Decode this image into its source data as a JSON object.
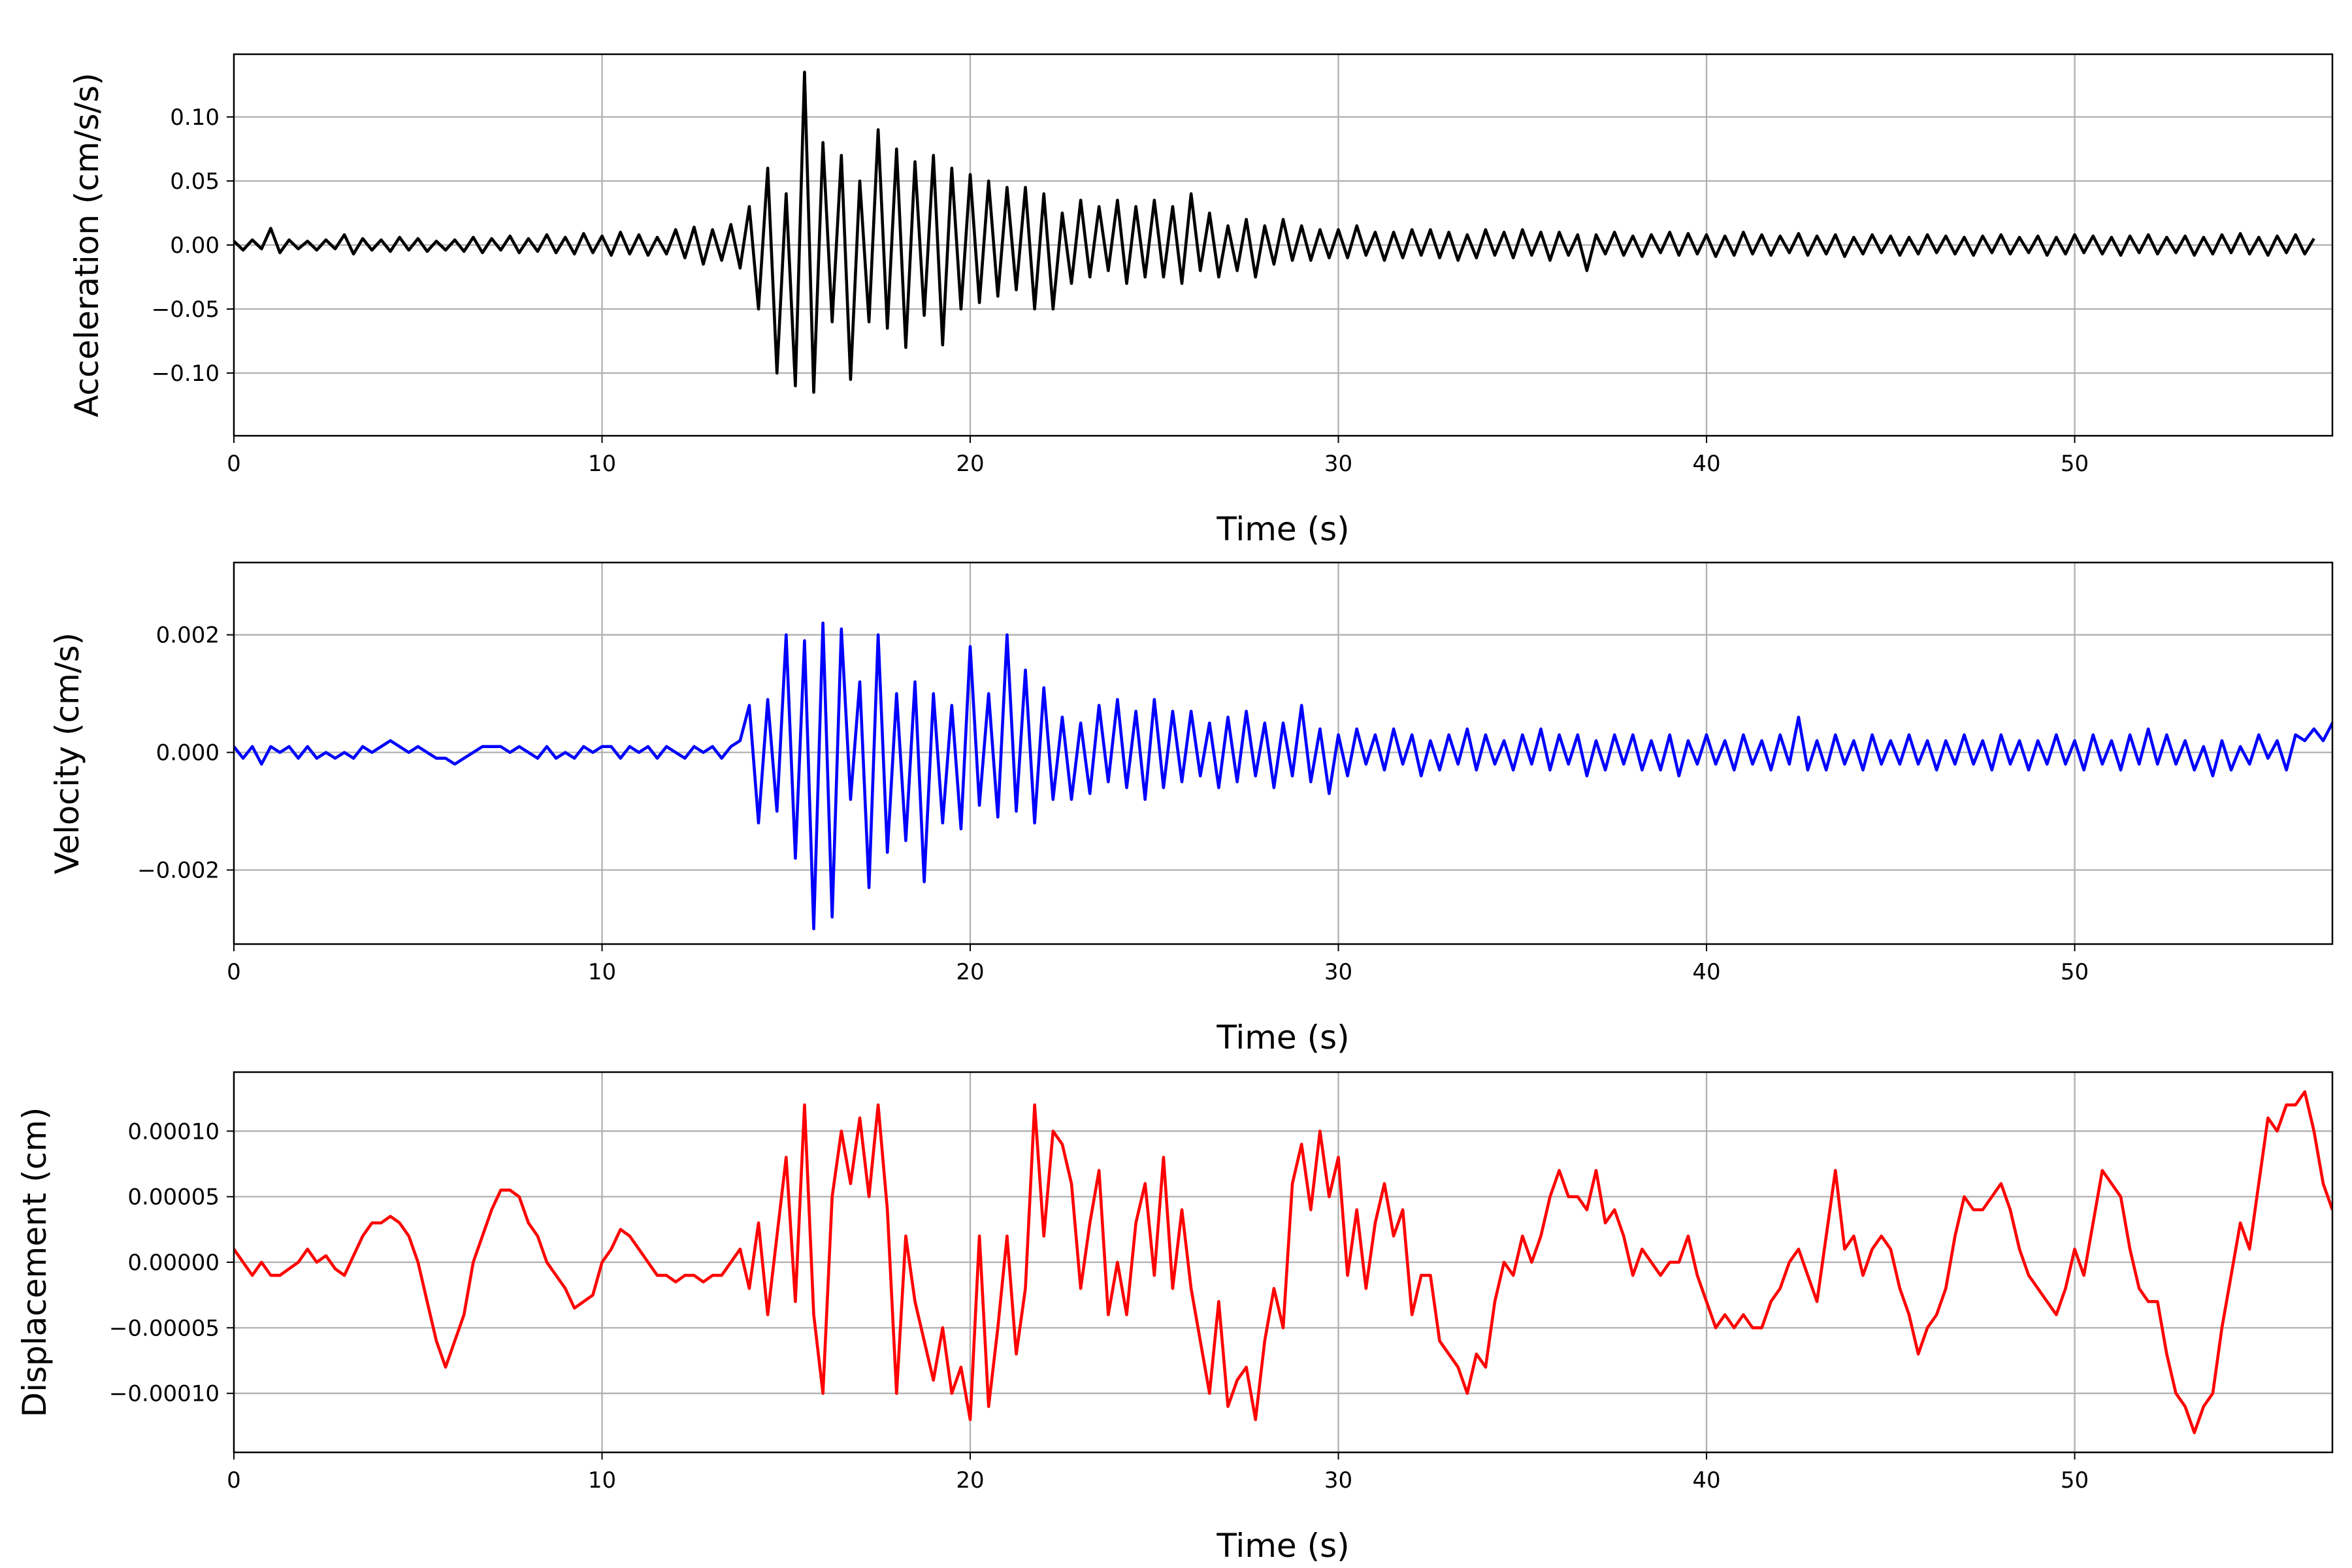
{
  "chart_data": [
    {
      "type": "line",
      "title": "",
      "xlabel": "Time (s)",
      "ylabel": "Acceleration (cm/s/s)",
      "color": "#000000",
      "xlim": [
        0,
        57
      ],
      "ylim": [
        -0.149,
        0.149
      ],
      "grid": true,
      "x_ticks": [
        0,
        10,
        20,
        30,
        40,
        50
      ],
      "x_tick_labels": [
        "0",
        "10",
        "20",
        "30",
        "40",
        "50"
      ],
      "y_ticks": [
        -0.1,
        -0.05,
        0.0,
        0.05,
        0.1
      ],
      "y_tick_labels": [
        "−0.10",
        "−0.05",
        "0.00",
        "0.05",
        "0.10"
      ],
      "x_start": 0,
      "dt": 0.25,
      "values": [
        0.003,
        -0.004,
        0.004,
        -0.003,
        0.013,
        -0.006,
        0.004,
        -0.003,
        0.003,
        -0.004,
        0.004,
        -0.003,
        0.008,
        -0.007,
        0.005,
        -0.004,
        0.004,
        -0.005,
        0.006,
        -0.004,
        0.005,
        -0.005,
        0.003,
        -0.004,
        0.004,
        -0.005,
        0.006,
        -0.006,
        0.005,
        -0.004,
        0.007,
        -0.006,
        0.005,
        -0.005,
        0.008,
        -0.006,
        0.006,
        -0.007,
        0.009,
        -0.006,
        0.007,
        -0.008,
        0.01,
        -0.007,
        0.008,
        -0.008,
        0.006,
        -0.007,
        0.012,
        -0.01,
        0.014,
        -0.015,
        0.012,
        -0.012,
        0.016,
        -0.018,
        0.03,
        -0.05,
        0.06,
        -0.1,
        0.04,
        -0.11,
        0.135,
        -0.115,
        0.08,
        -0.06,
        0.07,
        -0.105,
        0.05,
        -0.06,
        0.09,
        -0.065,
        0.075,
        -0.08,
        0.065,
        -0.055,
        0.07,
        -0.078,
        0.06,
        -0.05,
        0.055,
        -0.045,
        0.05,
        -0.04,
        0.045,
        -0.035,
        0.045,
        -0.05,
        0.04,
        -0.05,
        0.025,
        -0.03,
        0.035,
        -0.025,
        0.03,
        -0.02,
        0.035,
        -0.03,
        0.03,
        -0.025,
        0.035,
        -0.025,
        0.03,
        -0.03,
        0.04,
        -0.02,
        0.025,
        -0.025,
        0.015,
        -0.02,
        0.02,
        -0.025,
        0.015,
        -0.015,
        0.02,
        -0.012,
        0.015,
        -0.012,
        0.012,
        -0.01,
        0.012,
        -0.01,
        0.015,
        -0.008,
        0.01,
        -0.012,
        0.01,
        -0.01,
        0.012,
        -0.008,
        0.012,
        -0.01,
        0.01,
        -0.012,
        0.008,
        -0.01,
        0.012,
        -0.008,
        0.01,
        -0.01,
        0.012,
        -0.008,
        0.01,
        -0.012,
        0.01,
        -0.008,
        0.008,
        -0.02,
        0.008,
        -0.007,
        0.01,
        -0.008,
        0.007,
        -0.009,
        0.008,
        -0.006,
        0.01,
        -0.008,
        0.009,
        -0.007,
        0.008,
        -0.009,
        0.007,
        -0.008,
        0.01,
        -0.007,
        0.008,
        -0.008,
        0.007,
        -0.006,
        0.009,
        -0.008,
        0.007,
        -0.007,
        0.008,
        -0.009,
        0.006,
        -0.007,
        0.008,
        -0.006,
        0.007,
        -0.008,
        0.006,
        -0.007,
        0.008,
        -0.006,
        0.007,
        -0.007,
        0.006,
        -0.008,
        0.007,
        -0.006,
        0.008,
        -0.007,
        0.006,
        -0.006,
        0.007,
        -0.008,
        0.006,
        -0.007,
        0.008,
        -0.006,
        0.007,
        -0.007,
        0.006,
        -0.008,
        0.007,
        -0.006,
        0.008,
        -0.007,
        0.006,
        -0.006,
        0.007,
        -0.008,
        0.006,
        -0.007,
        0.008,
        -0.006,
        0.009,
        -0.007,
        0.006,
        -0.008,
        0.007,
        -0.006,
        0.008,
        -0.007,
        0.005
      ]
    },
    {
      "type": "line",
      "title": "",
      "xlabel": "Time (s)",
      "ylabel": "Velocity (cm/s)",
      "color": "#0000ff",
      "xlim": [
        0,
        57
      ],
      "ylim": [
        -0.00326,
        0.00323
      ],
      "grid": true,
      "x_ticks": [
        0,
        10,
        20,
        30,
        40,
        50
      ],
      "x_tick_labels": [
        "0",
        "10",
        "20",
        "30",
        "40",
        "50"
      ],
      "y_ticks": [
        -0.002,
        0.0,
        0.002
      ],
      "y_tick_labels": [
        "−0.002",
        "0.000",
        "0.002"
      ],
      "x_start": 0,
      "dt": 0.25,
      "values": [
        0.0001,
        -0.0001,
        0.0001,
        -0.0002,
        0.0001,
        0.0,
        0.0001,
        -0.0001,
        0.0001,
        -0.0001,
        0.0,
        -0.0001,
        0.0,
        -0.0001,
        0.0001,
        0.0,
        0.0001,
        0.0002,
        0.0001,
        0.0,
        0.0001,
        0.0,
        -0.0001,
        -0.0001,
        -0.0002,
        -0.0001,
        0.0,
        0.0001,
        0.0001,
        0.0001,
        0.0,
        0.0001,
        0.0,
        -0.0001,
        0.0001,
        -0.0001,
        0.0,
        -0.0001,
        0.0001,
        0.0,
        0.0001,
        0.0001,
        -0.0001,
        0.0001,
        0.0,
        0.0001,
        -0.0001,
        0.0001,
        0.0,
        -0.0001,
        0.0001,
        0.0,
        0.0001,
        -0.0001,
        0.0001,
        0.0002,
        0.0008,
        -0.0012,
        0.0009,
        -0.001,
        0.002,
        -0.0018,
        0.0019,
        -0.003,
        0.0022,
        -0.0028,
        0.0021,
        -0.0008,
        0.0012,
        -0.0023,
        0.002,
        -0.0017,
        0.001,
        -0.0015,
        0.0012,
        -0.0022,
        0.001,
        -0.0012,
        0.0008,
        -0.0013,
        0.0018,
        -0.0009,
        0.001,
        -0.0011,
        0.002,
        -0.001,
        0.0014,
        -0.0012,
        0.0011,
        -0.0008,
        0.0006,
        -0.0008,
        0.0005,
        -0.0007,
        0.0008,
        -0.0005,
        0.0009,
        -0.0006,
        0.0007,
        -0.0008,
        0.0009,
        -0.0006,
        0.0007,
        -0.0005,
        0.0007,
        -0.0004,
        0.0005,
        -0.0006,
        0.0006,
        -0.0005,
        0.0007,
        -0.0004,
        0.0005,
        -0.0006,
        0.0005,
        -0.0004,
        0.0008,
        -0.0005,
        0.0004,
        -0.0007,
        0.0003,
        -0.0004,
        0.0004,
        -0.0002,
        0.0003,
        -0.0003,
        0.0004,
        -0.0002,
        0.0003,
        -0.0004,
        0.0002,
        -0.0003,
        0.0003,
        -0.0002,
        0.0004,
        -0.0003,
        0.0003,
        -0.0002,
        0.0002,
        -0.0003,
        0.0003,
        -0.0002,
        0.0004,
        -0.0003,
        0.0003,
        -0.0002,
        0.0003,
        -0.0004,
        0.0002,
        -0.0003,
        0.0003,
        -0.0002,
        0.0003,
        -0.0003,
        0.0002,
        -0.0003,
        0.0003,
        -0.0004,
        0.0002,
        -0.0002,
        0.0003,
        -0.0002,
        0.0002,
        -0.0003,
        0.0003,
        -0.0002,
        0.0002,
        -0.0003,
        0.0003,
        -0.0002,
        0.0006,
        -0.0003,
        0.0002,
        -0.0003,
        0.0003,
        -0.0002,
        0.0002,
        -0.0003,
        0.0003,
        -0.0002,
        0.0002,
        -0.0002,
        0.0003,
        -0.0002,
        0.0002,
        -0.0003,
        0.0002,
        -0.0002,
        0.0003,
        -0.0002,
        0.0002,
        -0.0003,
        0.0003,
        -0.0002,
        0.0002,
        -0.0003,
        0.0002,
        -0.0002,
        0.0003,
        -0.0002,
        0.0002,
        -0.0003,
        0.0003,
        -0.0002,
        0.0002,
        -0.0003,
        0.0003,
        -0.0002,
        0.0004,
        -0.0002,
        0.0003,
        -0.0002,
        0.0002,
        -0.0003,
        0.0001,
        -0.0004,
        0.0002,
        -0.0003,
        0.0001,
        -0.0002,
        0.0003,
        -0.0001,
        0.0002,
        -0.0003,
        0.0003,
        0.0002,
        0.0004,
        0.0002,
        0.0005,
        0.0001,
        -0.0001
      ]
    },
    {
      "type": "line",
      "title": "",
      "xlabel": "Time (s)",
      "ylabel": "Displacement (cm)",
      "color": "#ff0000",
      "xlim": [
        0,
        57
      ],
      "ylim": [
        -0.000145,
        0.000145
      ],
      "grid": true,
      "x_ticks": [
        0,
        10,
        20,
        30,
        40,
        50
      ],
      "x_tick_labels": [
        "0",
        "10",
        "20",
        "30",
        "40",
        "50"
      ],
      "y_ticks": [
        -0.0001,
        -5e-05,
        0.0,
        5e-05,
        0.0001
      ],
      "y_tick_labels": [
        "−0.00010",
        "−0.00005",
        "0.00000",
        "0.00005",
        "0.00010"
      ],
      "x_start": 0,
      "dt": 0.25,
      "values": [
        1e-05,
        0,
        -1e-05,
        0,
        -1e-05,
        -1e-05,
        -5e-06,
        0,
        1e-05,
        0,
        5e-06,
        -5e-06,
        -1e-05,
        5e-06,
        2e-05,
        3e-05,
        3e-05,
        3.5e-05,
        3e-05,
        2e-05,
        0,
        -3e-05,
        -6e-05,
        -8e-05,
        -6e-05,
        -4e-05,
        0,
        2e-05,
        4e-05,
        5.5e-05,
        5.5e-05,
        5e-05,
        3e-05,
        2e-05,
        0,
        -1e-05,
        -2e-05,
        -3.5e-05,
        -3e-05,
        -2.5e-05,
        0,
        1e-05,
        2.5e-05,
        2e-05,
        1e-05,
        0,
        -1e-05,
        -1e-05,
        -1.5e-05,
        -1e-05,
        -1e-05,
        -1.5e-05,
        -1e-05,
        -1e-05,
        0,
        1e-05,
        -2e-05,
        3e-05,
        -4e-05,
        2e-05,
        8e-05,
        -3e-05,
        0.00012,
        -4e-05,
        -0.0001,
        5e-05,
        0.0001,
        6e-05,
        0.00011,
        5e-05,
        0.00012,
        4e-05,
        -0.0001,
        2e-05,
        -3e-05,
        -6e-05,
        -9e-05,
        -5e-05,
        -0.0001,
        -8e-05,
        -0.00012,
        2e-05,
        -0.00011,
        -5e-05,
        2e-05,
        -7e-05,
        -2e-05,
        0.00012,
        2e-05,
        0.0001,
        9e-05,
        6e-05,
        -2e-05,
        3e-05,
        7e-05,
        -4e-05,
        0,
        -4e-05,
        3e-05,
        6e-05,
        -1e-05,
        8e-05,
        -2e-05,
        4e-05,
        -2e-05,
        -6e-05,
        -0.0001,
        -3e-05,
        -0.00011,
        -9e-05,
        -8e-05,
        -0.00012,
        -6e-05,
        -2e-05,
        -5e-05,
        6e-05,
        9e-05,
        4e-05,
        0.0001,
        5e-05,
        8e-05,
        -1e-05,
        4e-05,
        -2e-05,
        3e-05,
        6e-05,
        2e-05,
        4e-05,
        -4e-05,
        -1e-05,
        -1e-05,
        -6e-05,
        -7e-05,
        -8e-05,
        -0.0001,
        -7e-05,
        -8e-05,
        -3e-05,
        0,
        -1e-05,
        2e-05,
        0,
        2e-05,
        5e-05,
        7e-05,
        5e-05,
        5e-05,
        4e-05,
        7e-05,
        3e-05,
        4e-05,
        2e-05,
        -1e-05,
        1e-05,
        0,
        -1e-05,
        0,
        0,
        2e-05,
        -1e-05,
        -3e-05,
        -5e-05,
        -4e-05,
        -5e-05,
        -4e-05,
        -5e-05,
        -5e-05,
        -3e-05,
        -2e-05,
        0,
        1e-05,
        -1e-05,
        -3e-05,
        2e-05,
        7e-05,
        1e-05,
        2e-05,
        -1e-05,
        1e-05,
        2e-05,
        1e-05,
        -2e-05,
        -4e-05,
        -7e-05,
        -5e-05,
        -4e-05,
        -2e-05,
        2e-05,
        5e-05,
        4e-05,
        4e-05,
        5e-05,
        6e-05,
        4e-05,
        1e-05,
        -1e-05,
        -2e-05,
        -3e-05,
        -4e-05,
        -2e-05,
        1e-05,
        -1e-05,
        3e-05,
        7e-05,
        6e-05,
        5e-05,
        1e-05,
        -2e-05,
        -3e-05,
        -3e-05,
        -7e-05,
        -0.0001,
        -0.00011,
        -0.00013,
        -0.00011,
        -0.0001,
        -5e-05,
        -1e-05,
        3e-05,
        1e-05,
        6e-05,
        0.00011,
        0.0001,
        0.00012,
        0.00012,
        0.00013,
        0.0001,
        6e-05,
        4e-05
      ]
    }
  ]
}
